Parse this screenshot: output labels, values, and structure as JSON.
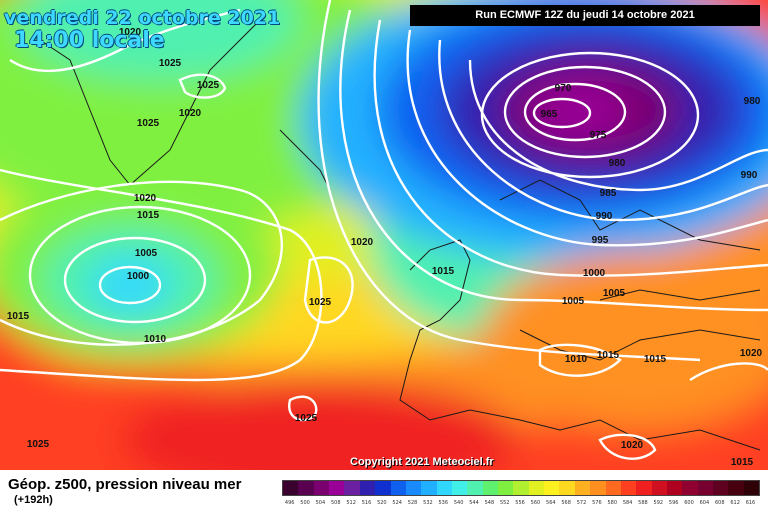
{
  "header": {
    "date_line": "vendredi 22 octobre 2021",
    "time_line": "14:00 locale",
    "run_info": "Run ECMWF 12Z du jeudi 14 octobre 2021"
  },
  "footer": {
    "copyright": "Copyright 2021 Meteociel.fr",
    "legend_title": "Géop. z500, pression niveau mer",
    "legend_subtitle": "(+192h)"
  },
  "legend_scale": {
    "labels": [
      "496",
      "500",
      "504",
      "508",
      "512",
      "516",
      "520",
      "524",
      "528",
      "532",
      "536",
      "540",
      "544",
      "548",
      "552",
      "556",
      "560",
      "564",
      "568",
      "572",
      "576",
      "580",
      "584",
      "588",
      "592",
      "596",
      "600",
      "604",
      "608",
      "612",
      "616"
    ],
    "colors": [
      "#3a002e",
      "#5a0050",
      "#7a0070",
      "#9a0098",
      "#6a20a0",
      "#3020b0",
      "#1030d0",
      "#1060f0",
      "#1a8aff",
      "#20b0ff",
      "#30d8ff",
      "#40f0e8",
      "#50f0b0",
      "#60f070",
      "#80f040",
      "#b0f030",
      "#e0f020",
      "#fff020",
      "#ffd820",
      "#ffb020",
      "#ff9020",
      "#ff6a20",
      "#ff4020",
      "#f02020",
      "#d01020",
      "#b00020",
      "#900030",
      "#780030",
      "#600020",
      "#480010",
      "#300008"
    ]
  },
  "isobar_labels": [
    "1020",
    "1025",
    "1025",
    "1020",
    "1025",
    "1020",
    "1015",
    "1005",
    "1000",
    "1010",
    "1015",
    "1025",
    "1025",
    "1025",
    "1020",
    "1015",
    "970",
    "965",
    "975",
    "980",
    "980",
    "985",
    "990",
    "990",
    "995",
    "1000",
    "1005",
    "1005",
    "1010",
    "1015",
    "1015",
    "1020",
    "1020",
    "1015"
  ]
}
